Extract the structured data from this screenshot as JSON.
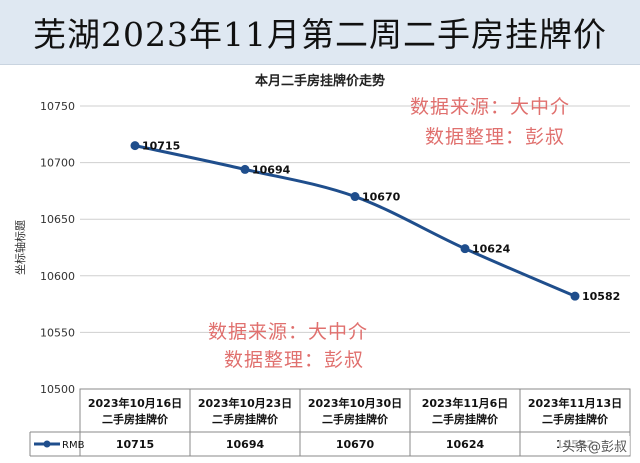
{
  "banner": {
    "title": "芜湖2023年11月第二周二手房挂牌价"
  },
  "watermark": {
    "top_line1": "数据来源：大中介",
    "top_line2": "数据整理：彭叔",
    "mid_line1": "数据来源：大中介",
    "mid_line2": "数据整理：彭叔"
  },
  "credit": "头条@彭叔",
  "colors": {
    "line": "#1f4e8c",
    "grid": "#cfcfcf",
    "watermark": "#e0706e"
  },
  "chart_data": {
    "type": "line",
    "title": "本月二手房挂牌价走势",
    "ylabel": "坐标轴标题",
    "xlabel": "",
    "categories": [
      "2023年10月16日二手房挂牌价",
      "2023年10月23日二手房挂牌价",
      "2023年10月30日二手房挂牌价",
      "2023年11月6日二手房挂牌价",
      "2023年11月13日二手房挂牌价"
    ],
    "ylim": [
      10500,
      10750
    ],
    "yticks": [
      10500,
      10550,
      10600,
      10650,
      10700,
      10750
    ],
    "grid": true,
    "legend": "table-left",
    "series": [
      {
        "name": "RMB",
        "values": [
          10715,
          10694,
          10670,
          10624,
          10582
        ]
      }
    ]
  }
}
